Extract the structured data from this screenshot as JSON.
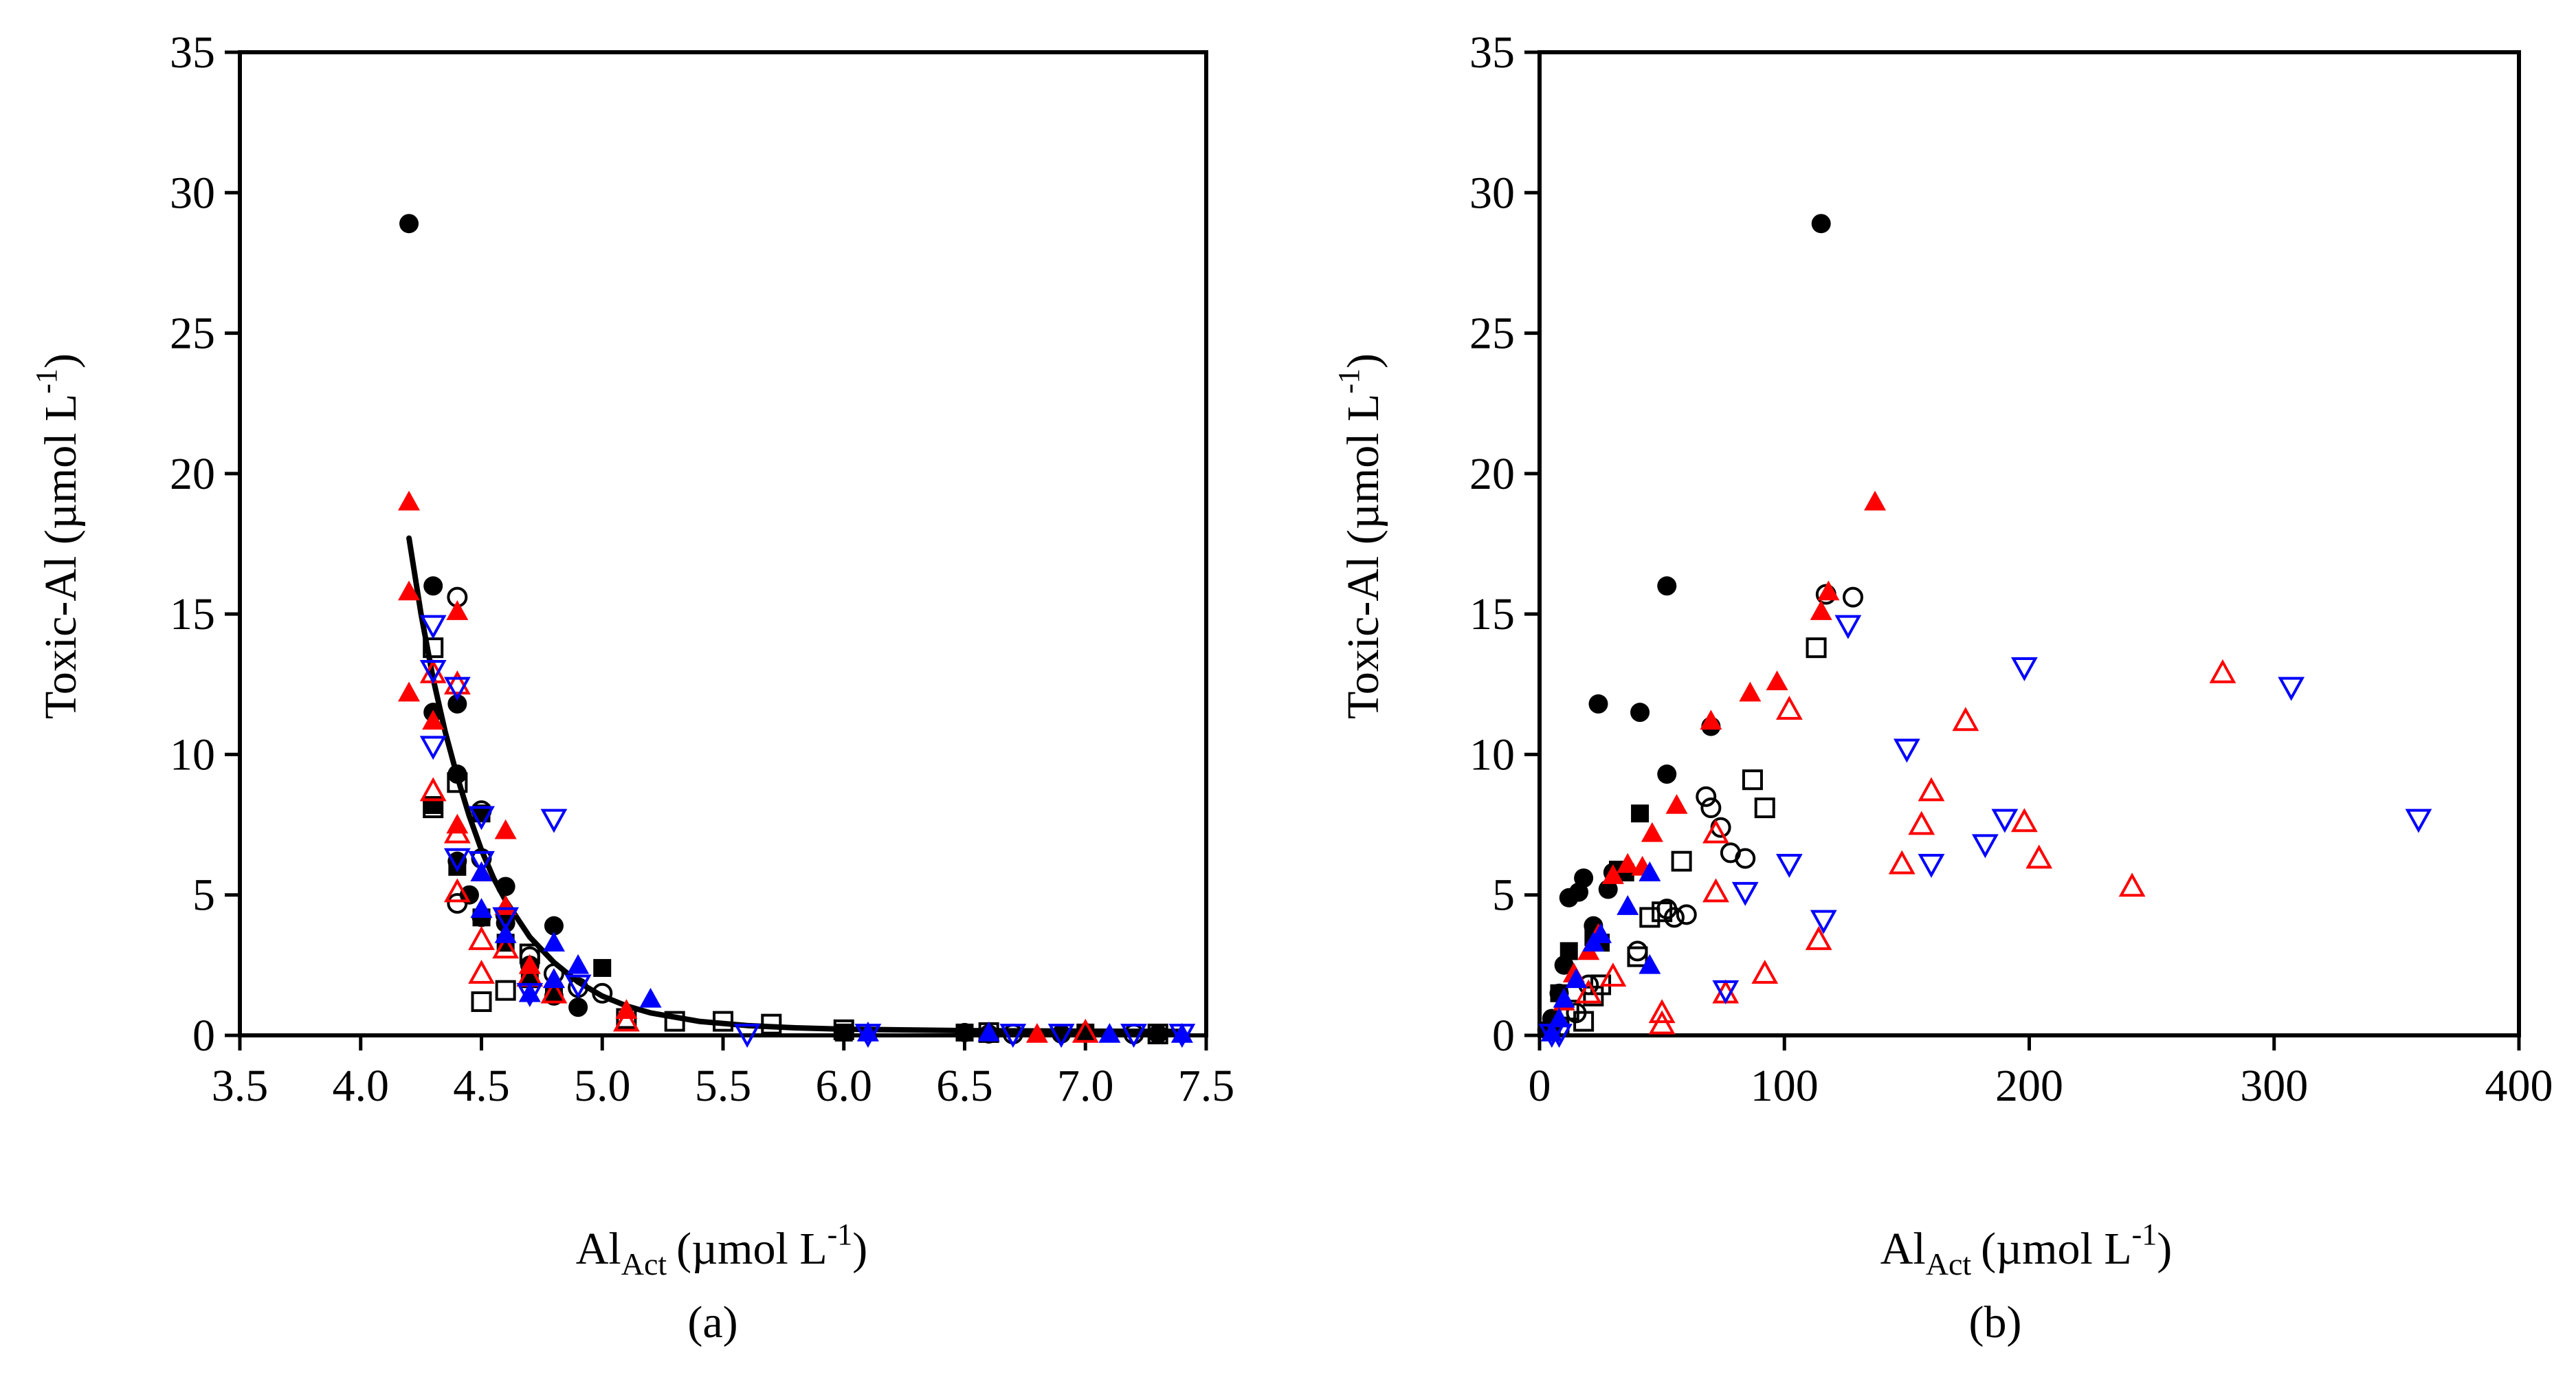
{
  "chart_data": [
    {
      "type": "scatter",
      "panel_label": "(a)",
      "xlabel_main": "Al",
      "xlabel_sub": "Act",
      "xlabel_unit_pre": "(µmol L",
      "xlabel_unit_sup": "-1",
      "xlabel_unit_post": ")",
      "ylabel_main": "Toxic-Al (µmol L",
      "ylabel_sup": "-1",
      "ylabel_post": ")",
      "xlim": [
        3.5,
        7.5
      ],
      "ylim": [
        0,
        35
      ],
      "xticks": [
        "3.5",
        "4.0",
        "4.5",
        "5.0",
        "5.5",
        "6.0",
        "6.5",
        "7.0",
        "7.5"
      ],
      "yticks": [
        "0",
        "5",
        "10",
        "15",
        "20",
        "25",
        "30",
        "35"
      ],
      "grid": false,
      "legend": "none",
      "fit_curve": {
        "x": [
          4.2,
          4.25,
          4.3,
          4.35,
          4.4,
          4.45,
          4.5,
          4.55,
          4.6,
          4.7,
          4.8,
          4.9,
          5.0,
          5.1,
          5.2,
          5.4,
          5.6,
          5.8,
          6.0,
          6.5,
          7.0,
          7.4
        ],
        "y": [
          17.7,
          15.0,
          12.7,
          10.8,
          9.2,
          7.8,
          6.6,
          5.6,
          4.8,
          3.5,
          2.6,
          1.9,
          1.4,
          1.05,
          0.8,
          0.5,
          0.35,
          0.27,
          0.22,
          0.17,
          0.15,
          0.14
        ]
      },
      "series": [
        {
          "name": "black filled circle",
          "marker": "circle",
          "filled": true,
          "color": "#000000",
          "x": [
            4.2,
            4.3,
            4.3,
            4.4,
            4.4,
            4.4,
            4.45,
            4.5,
            4.6,
            4.6,
            4.7,
            4.8,
            4.8,
            4.9,
            6.5,
            6.6,
            6.9,
            7.0,
            7.3
          ],
          "y": [
            28.9,
            16.0,
            11.5,
            11.8,
            9.3,
            6.2,
            5.0,
            4.2,
            5.3,
            4.0,
            2.5,
            3.9,
            1.4,
            1.0,
            0.1,
            0.05,
            0.05,
            0.1,
            0.05
          ]
        },
        {
          "name": "black open circle",
          "marker": "circle",
          "filled": false,
          "color": "#000000",
          "x": [
            4.4,
            4.4,
            4.5,
            4.5,
            4.6,
            4.7,
            4.8,
            4.9,
            5.0,
            6.7,
            7.2
          ],
          "y": [
            15.6,
            4.7,
            6.3,
            8.0,
            4.3,
            2.8,
            2.2,
            1.7,
            1.5,
            0.05,
            0.05
          ]
        },
        {
          "name": "black filled square",
          "marker": "square",
          "filled": true,
          "color": "#000000",
          "x": [
            4.3,
            4.4,
            4.5,
            4.5,
            4.6,
            4.7,
            4.8,
            5.0,
            6.0,
            6.5,
            7.0
          ],
          "y": [
            8.2,
            6.0,
            4.2,
            7.9,
            3.3,
            2.0,
            1.5,
            2.4,
            0.1,
            0.1,
            0.1
          ]
        },
        {
          "name": "black open square",
          "marker": "square",
          "filled": false,
          "color": "#000000",
          "x": [
            4.3,
            4.3,
            4.4,
            4.5,
            4.6,
            4.7,
            5.1,
            5.3,
            5.5,
            5.7,
            6.0,
            6.6,
            7.3
          ],
          "y": [
            13.8,
            8.1,
            9.0,
            1.2,
            1.6,
            2.9,
            0.6,
            0.5,
            0.5,
            0.4,
            0.2,
            0.1,
            0.05
          ]
        },
        {
          "name": "red filled triangle",
          "marker": "triangle-up",
          "filled": true,
          "color": "#ff0000",
          "x": [
            4.2,
            4.2,
            4.2,
            4.3,
            4.4,
            4.4,
            4.5,
            4.6,
            4.6,
            4.7,
            4.8,
            5.1,
            6.8
          ],
          "y": [
            19.0,
            15.8,
            12.2,
            11.2,
            15.1,
            7.5,
            5.8,
            7.3,
            4.6,
            2.5,
            2.0,
            0.9,
            0.05
          ]
        },
        {
          "name": "red open triangle",
          "marker": "triangle-up",
          "filled": false,
          "color": "#ff0000",
          "x": [
            4.3,
            4.3,
            4.4,
            4.4,
            4.4,
            4.5,
            4.5,
            4.6,
            4.7,
            4.8,
            5.1,
            7.0
          ],
          "y": [
            12.9,
            8.7,
            12.5,
            7.2,
            5.1,
            3.4,
            2.2,
            3.1,
            2.1,
            1.5,
            0.5,
            0.1
          ]
        },
        {
          "name": "blue filled triangle",
          "marker": "triangle-up",
          "filled": true,
          "color": "#0000ff",
          "x": [
            4.5,
            4.5,
            4.6,
            4.7,
            4.8,
            4.8,
            4.9,
            5.2,
            6.1,
            6.6,
            7.1,
            7.4
          ],
          "y": [
            5.8,
            4.5,
            3.6,
            1.5,
            3.3,
            2.0,
            2.5,
            1.3,
            0.1,
            0.1,
            0.05,
            0.05
          ]
        },
        {
          "name": "blue open inverted triangle",
          "marker": "triangle-down",
          "filled": false,
          "color": "#0000ff",
          "x": [
            4.3,
            4.3,
            4.3,
            4.4,
            4.4,
            4.5,
            4.5,
            4.6,
            4.7,
            4.8,
            4.9,
            5.6,
            6.1,
            6.7,
            6.9,
            7.2,
            7.4
          ],
          "y": [
            14.6,
            13.0,
            10.3,
            12.4,
            6.3,
            7.8,
            6.2,
            4.2,
            1.5,
            7.7,
            1.8,
            0.05,
            0.05,
            0.05,
            0.05,
            0.05,
            0.05
          ]
        }
      ]
    },
    {
      "type": "scatter",
      "panel_label": "(b)",
      "xlabel_main": "Al",
      "xlabel_sub": "Act",
      "xlabel_unit_pre": "(µmol L",
      "xlabel_unit_sup": "-1",
      "xlabel_unit_post": ")",
      "ylabel_main": "Toxic-Al (µmol L",
      "ylabel_sup": "-1",
      "ylabel_post": ")",
      "xlim": [
        0,
        400
      ],
      "ylim": [
        0,
        35
      ],
      "xticks": [
        "0",
        "100",
        "200",
        "300",
        "400"
      ],
      "yticks": [
        "0",
        "5",
        "10",
        "15",
        "20",
        "25",
        "30",
        "35"
      ],
      "grid": false,
      "legend": "none",
      "series": [
        {
          "name": "black filled circle",
          "marker": "circle",
          "filled": true,
          "color": "#000000",
          "x": [
            115,
            52,
            24,
            41,
            70,
            52,
            12,
            18,
            16,
            22,
            28,
            30,
            10,
            8,
            5,
            3
          ],
          "y": [
            28.9,
            16.0,
            11.8,
            11.5,
            11.0,
            9.3,
            4.9,
            5.6,
            5.1,
            3.9,
            5.2,
            5.8,
            2.5,
            1.5,
            0.6,
            0.2
          ]
        },
        {
          "name": "black open circle",
          "marker": "circle",
          "filled": false,
          "color": "#000000",
          "x": [
            117,
            128,
            68,
            70,
            74,
            78,
            84,
            52,
            55,
            60,
            40,
            20,
            15
          ],
          "y": [
            15.7,
            15.6,
            8.5,
            8.1,
            7.4,
            6.5,
            6.3,
            4.5,
            4.2,
            4.3,
            3.0,
            1.8,
            0.8
          ]
        },
        {
          "name": "black filled square",
          "marker": "square",
          "filled": true,
          "color": "#000000",
          "x": [
            41,
            32,
            35,
            25,
            22,
            12,
            8,
            5
          ],
          "y": [
            7.9,
            5.9,
            5.8,
            3.3,
            3.5,
            3.0,
            1.5,
            0.3
          ]
        },
        {
          "name": "black open square",
          "marker": "square",
          "filled": false,
          "color": "#000000",
          "x": [
            113,
            87,
            92,
            58,
            45,
            50,
            40,
            25,
            22,
            18,
            12,
            8
          ],
          "y": [
            13.8,
            9.1,
            8.1,
            6.2,
            4.2,
            4.4,
            2.8,
            1.8,
            1.4,
            0.5,
            0.9,
            0.3
          ]
        },
        {
          "name": "red filled triangle",
          "marker": "triangle-up",
          "filled": true,
          "color": "#ff0000",
          "x": [
            137,
            118,
            115,
            97,
            86,
            70,
            56,
            46,
            42,
            36,
            30,
            24,
            20,
            14,
            10
          ],
          "y": [
            19.0,
            15.8,
            15.1,
            12.6,
            12.2,
            11.2,
            8.2,
            7.2,
            6.0,
            6.1,
            5.7,
            3.6,
            3.0,
            2.2,
            1.2
          ]
        },
        {
          "name": "red open triangle",
          "marker": "triangle-up",
          "filled": false,
          "color": "#ff0000",
          "x": [
            279,
            174,
            160,
            156,
            198,
            204,
            148,
            242,
            102,
            72,
            72,
            114,
            92,
            76,
            50,
            50,
            30,
            20
          ],
          "y": [
            12.9,
            11.2,
            8.7,
            7.5,
            7.6,
            6.3,
            6.1,
            5.3,
            11.6,
            7.2,
            5.1,
            3.4,
            2.2,
            1.5,
            0.8,
            0.4,
            2.1,
            1.5
          ]
        },
        {
          "name": "blue filled triangle",
          "marker": "triangle-up",
          "filled": true,
          "color": "#0000ff",
          "x": [
            45,
            36,
            25,
            22,
            45,
            15,
            10,
            8,
            5
          ],
          "y": [
            5.8,
            4.6,
            3.6,
            3.3,
            2.5,
            2.0,
            1.3,
            0.6,
            0.1
          ]
        },
        {
          "name": "blue open inverted triangle",
          "marker": "triangle-down",
          "filled": false,
          "color": "#0000ff",
          "x": [
            126,
            198,
            307,
            150,
            190,
            359,
            182,
            160,
            102,
            84,
            116,
            76,
            5,
            8
          ],
          "y": [
            14.6,
            13.1,
            12.4,
            10.2,
            7.7,
            7.7,
            6.8,
            6.1,
            6.1,
            5.1,
            4.1,
            1.6,
            0.05,
            0.05
          ]
        }
      ]
    }
  ]
}
